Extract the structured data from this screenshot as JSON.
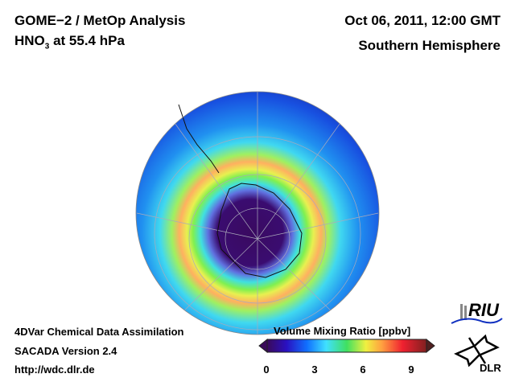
{
  "header": {
    "title": "GOME−2 / MetOp Analysis",
    "species_main": "HNO",
    "species_sub": "3",
    "level": " at 55.4 hPa",
    "datetime": "Oct 06, 2011, 12:00 GMT",
    "region": "Southern Hemisphere"
  },
  "footer": {
    "line1": "4DVar Chemical Data Assimilation",
    "line2": "SACADA Version 2.4",
    "line3": "http://wdc.dlr.de"
  },
  "colorbar": {
    "label": "Volume Mixing Ratio [ppbv]",
    "ticks": [
      "0",
      "3",
      "6",
      "9"
    ],
    "range": [
      0,
      10
    ],
    "colors": [
      "#3a0a5a",
      "#2a10c0",
      "#1070ff",
      "#40e0ff",
      "#40e060",
      "#f0f040",
      "#ffa040",
      "#f02030",
      "#802020"
    ]
  },
  "logos": {
    "riu": "RIU",
    "dlr": "DLR"
  }
}
